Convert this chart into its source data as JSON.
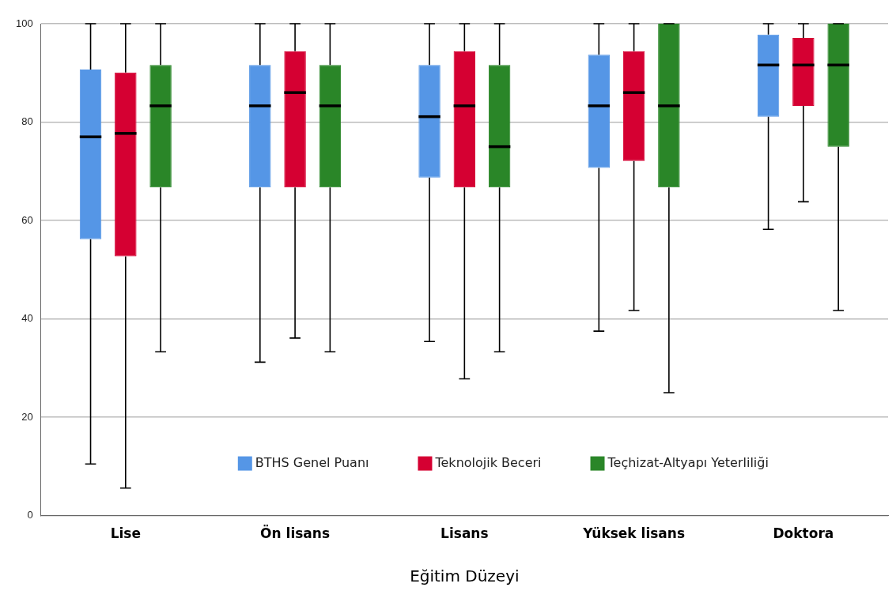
{
  "chart_data": {
    "type": "box",
    "xlabel": "Eğitim Düzeyi",
    "categories": [
      "Lise",
      "Ön lisans",
      "Lisans",
      "Yüksek lisans",
      "Doktora"
    ],
    "series": [
      {
        "name": "BTHS Genel Puanı",
        "color": "#5596e6",
        "boxes": [
          {
            "low": 10.5,
            "q1": 56.2,
            "median": 77.0,
            "q3": 90.7,
            "high": 100
          },
          {
            "low": 31.2,
            "q1": 66.7,
            "median": 83.3,
            "q3": 91.6,
            "high": 100
          },
          {
            "low": 35.4,
            "q1": 68.7,
            "median": 81.1,
            "q3": 91.6,
            "high": 100
          },
          {
            "low": 37.5,
            "q1": 70.7,
            "median": 83.3,
            "q3": 93.7,
            "high": 100
          },
          {
            "low": 58.2,
            "q1": 81.1,
            "median": 91.6,
            "q3": 97.8,
            "high": 100
          }
        ]
      },
      {
        "name": "Teknolojik Beceri",
        "color": "#d50032",
        "boxes": [
          {
            "low": 5.6,
            "q1": 52.7,
            "median": 77.7,
            "q3": 90.1,
            "high": 100
          },
          {
            "low": 36.1,
            "q1": 66.7,
            "median": 86.0,
            "q3": 94.4,
            "high": 100
          },
          {
            "low": 27.8,
            "q1": 66.7,
            "median": 83.3,
            "q3": 94.4,
            "high": 100
          },
          {
            "low": 41.7,
            "q1": 72.1,
            "median": 86.0,
            "q3": 94.4,
            "high": 100
          },
          {
            "low": 63.8,
            "q1": 83.3,
            "median": 91.6,
            "q3": 97.1,
            "high": 100
          }
        ]
      },
      {
        "name": "Teçhizat-Altyapı Yeterliliği",
        "color": "#2a8628",
        "boxes": [
          {
            "low": 33.3,
            "q1": 66.7,
            "median": 83.3,
            "q3": 91.6,
            "high": 100
          },
          {
            "low": 33.3,
            "q1": 66.7,
            "median": 83.3,
            "q3": 91.6,
            "high": 100
          },
          {
            "low": 33.3,
            "q1": 66.7,
            "median": 75.0,
            "q3": 91.6,
            "high": 100
          },
          {
            "low": 25.0,
            "q1": 66.7,
            "median": 83.3,
            "q3": 100,
            "high": 100
          },
          {
            "low": 41.7,
            "q1": 75.0,
            "median": 91.6,
            "q3": 100,
            "high": 100
          }
        ]
      }
    ],
    "ylim": [
      0,
      100
    ],
    "yticks": [
      0,
      20,
      40,
      60,
      80,
      100
    ],
    "grid": "y",
    "legend": "bottom"
  }
}
